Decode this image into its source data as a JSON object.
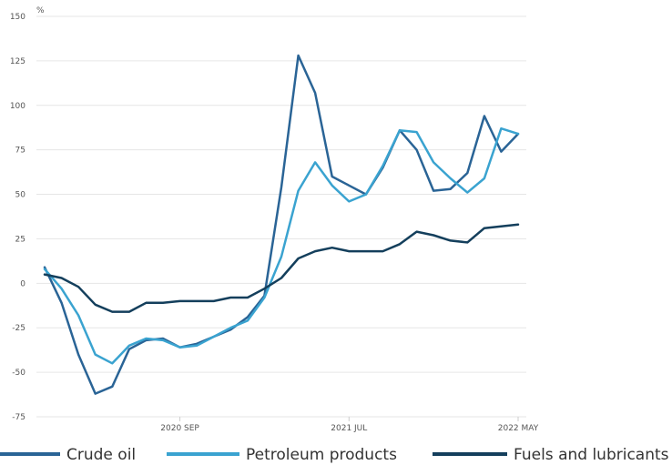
{
  "chart_data": {
    "type": "line",
    "ylabel": "%",
    "ylim": [
      -75,
      150
    ],
    "y_ticks": [
      -75,
      -50,
      -25,
      0,
      25,
      50,
      75,
      100,
      125,
      150
    ],
    "x_tick_labels": [
      "2020 SEP",
      "2021 JUL",
      "2022 MAY"
    ],
    "x": [
      "2020 Jan",
      "2020 Feb",
      "2020 Mar",
      "2020 Apr",
      "2020 May",
      "2020 Jun",
      "2020 Jul",
      "2020 Aug",
      "2020 Sep",
      "2020 Oct",
      "2020 Nov",
      "2020 Dec",
      "2021 Jan",
      "2021 Feb",
      "2021 Mar",
      "2021 Apr",
      "2021 May",
      "2021 Jun",
      "2021 Jul",
      "2021 Aug",
      "2021 Sep",
      "2021 Oct",
      "2021 Nov",
      "2021 Dec",
      "2022 Jan",
      "2022 Feb",
      "2022 Mar",
      "2022 Apr",
      "2022 May"
    ],
    "grid": "horizontal",
    "legend_position": "bottom",
    "series": [
      {
        "name": "Crude oil",
        "color": "#2a6496",
        "values": [
          9,
          -11,
          -40,
          -62,
          -58,
          -37,
          -32,
          -31,
          -36,
          -34,
          -30,
          -26,
          -19,
          -7,
          54,
          128,
          107,
          60,
          55,
          50,
          65,
          86,
          75,
          52,
          53,
          62,
          94,
          74,
          84
        ]
      },
      {
        "name": "Petroleum products",
        "color": "#3aa3d0",
        "values": [
          8,
          -3,
          -18,
          -40,
          -45,
          -35,
          -31,
          -32,
          -36,
          -35,
          -30,
          -25,
          -21,
          -8,
          15,
          52,
          68,
          55,
          46,
          50,
          66,
          86,
          85,
          68,
          59,
          51,
          59,
          87,
          84
        ]
      },
      {
        "name": "Fuels and lubricants",
        "color": "#143f5c",
        "values": [
          5,
          3,
          -2,
          -12,
          -16,
          -16,
          -11,
          -11,
          -10,
          -10,
          -10,
          -8,
          -8,
          -3,
          3,
          14,
          18,
          20,
          18,
          18,
          18,
          22,
          29,
          27,
          24,
          23,
          31,
          32,
          33
        ]
      }
    ]
  }
}
